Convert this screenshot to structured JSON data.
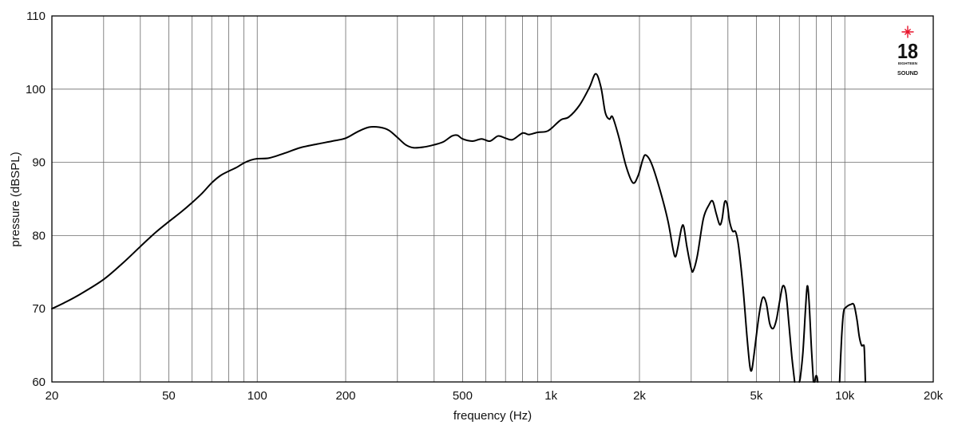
{
  "chart_data": {
    "type": "line",
    "xlabel": "frequency (Hz)",
    "ylabel": "pressure (dBSPL)",
    "xscale": "log",
    "xlim": [
      20,
      20000
    ],
    "ylim": [
      60,
      110
    ],
    "xticks": [
      {
        "v": 20,
        "label": "20"
      },
      {
        "v": 50,
        "label": "50"
      },
      {
        "v": 100,
        "label": "100"
      },
      {
        "v": 200,
        "label": "200"
      },
      {
        "v": 500,
        "label": "500"
      },
      {
        "v": 1000,
        "label": "1k"
      },
      {
        "v": 2000,
        "label": "2k"
      },
      {
        "v": 5000,
        "label": "5k"
      },
      {
        "v": 10000,
        "label": "10k"
      },
      {
        "v": 20000,
        "label": "20k"
      }
    ],
    "yticks": [
      60,
      70,
      80,
      90,
      100,
      110
    ],
    "grid": true,
    "line_color": "#000000",
    "series": [
      {
        "segments": [
          [
            [
              20,
              70
            ],
            [
              22,
              70.8
            ],
            [
              25,
              72
            ],
            [
              30,
              74
            ],
            [
              35,
              76.3
            ],
            [
              40,
              78.5
            ],
            [
              45,
              80.4
            ],
            [
              50,
              81.9
            ],
            [
              55,
              83.2
            ],
            [
              60,
              84.5
            ],
            [
              65,
              85.8
            ],
            [
              70,
              87.2
            ],
            [
              75,
              88.2
            ],
            [
              80,
              88.8
            ],
            [
              85,
              89.3
            ],
            [
              90,
              89.9
            ],
            [
              95,
              90.3
            ],
            [
              100,
              90.5
            ],
            [
              110,
              90.6
            ],
            [
              125,
              91.3
            ],
            [
              140,
              92
            ],
            [
              160,
              92.5
            ],
            [
              180,
              92.9
            ],
            [
              200,
              93.3
            ],
            [
              220,
              94.2
            ],
            [
              240,
              94.8
            ],
            [
              260,
              94.8
            ],
            [
              280,
              94.4
            ],
            [
              300,
              93.4
            ],
            [
              320,
              92.4
            ],
            [
              340,
              92
            ],
            [
              370,
              92.1
            ],
            [
              400,
              92.4
            ],
            [
              430,
              92.8
            ],
            [
              460,
              93.6
            ],
            [
              480,
              93.7
            ],
            [
              500,
              93.2
            ],
            [
              540,
              92.9
            ],
            [
              580,
              93.2
            ],
            [
              620,
              92.9
            ],
            [
              660,
              93.6
            ],
            [
              700,
              93.3
            ],
            [
              740,
              93.1
            ],
            [
              800,
              94
            ],
            [
              840,
              93.8
            ],
            [
              900,
              94.1
            ],
            [
              960,
              94.2
            ],
            [
              1000,
              94.6
            ],
            [
              1080,
              95.8
            ],
            [
              1150,
              96.2
            ],
            [
              1250,
              97.8
            ],
            [
              1350,
              100.2
            ],
            [
              1420,
              102.1
            ],
            [
              1480,
              100.2
            ],
            [
              1530,
              96.8
            ],
            [
              1580,
              95.9
            ],
            [
              1620,
              96.2
            ],
            [
              1700,
              93.5
            ],
            [
              1800,
              89.5
            ],
            [
              1900,
              87.2
            ],
            [
              1980,
              88.2
            ],
            [
              2050,
              90.3
            ],
            [
              2100,
              91
            ],
            [
              2200,
              89.8
            ],
            [
              2350,
              86.2
            ],
            [
              2500,
              82
            ],
            [
              2600,
              78.2
            ],
            [
              2650,
              77.1
            ],
            [
              2700,
              78.3
            ],
            [
              2780,
              81
            ],
            [
              2830,
              81.2
            ],
            [
              2900,
              78.5
            ],
            [
              3000,
              75.5
            ],
            [
              3050,
              75.2
            ],
            [
              3150,
              77.3
            ],
            [
              3300,
              82.3
            ],
            [
              3450,
              84.2
            ],
            [
              3550,
              84.7
            ],
            [
              3650,
              83
            ],
            [
              3750,
              81.5
            ],
            [
              3820,
              82.2
            ],
            [
              3900,
              84.6
            ],
            [
              3980,
              84.2
            ],
            [
              4050,
              82
            ],
            [
              4150,
              80.6
            ],
            [
              4250,
              80.5
            ],
            [
              4350,
              78.5
            ],
            [
              4500,
              73
            ],
            [
              4650,
              66
            ],
            [
              4750,
              62.2
            ],
            [
              4820,
              61.6
            ],
            [
              4900,
              63.5
            ],
            [
              5100,
              69
            ],
            [
              5250,
              71.5
            ],
            [
              5400,
              70.8
            ],
            [
              5550,
              68
            ],
            [
              5700,
              67.3
            ],
            [
              5850,
              68.5
            ],
            [
              6000,
              71
            ],
            [
              6150,
              73.1
            ],
            [
              6300,
              72.2
            ],
            [
              6450,
              68
            ],
            [
              6600,
              63.5
            ],
            [
              6750,
              60
            ]
          ],
          [
            [
              7000,
              60
            ],
            [
              7050,
              60.5
            ],
            [
              7200,
              64
            ],
            [
              7350,
              70
            ],
            [
              7450,
              73.1
            ],
            [
              7550,
              71.2
            ],
            [
              7700,
              64.5
            ],
            [
              7820,
              60
            ]
          ],
          [
            [
              7900,
              60
            ],
            [
              7970,
              60.8
            ],
            [
              8040,
              60.7
            ],
            [
              8090,
              60
            ]
          ],
          [
            [
              9600,
              60
            ],
            [
              9750,
              66
            ],
            [
              9900,
              69.5
            ],
            [
              10100,
              70.2
            ],
            [
              10500,
              70.6
            ],
            [
              10750,
              70.5
            ],
            [
              11000,
              68.5
            ],
            [
              11200,
              66.2
            ],
            [
              11400,
              65
            ],
            [
              11550,
              65
            ],
            [
              11650,
              64.5
            ],
            [
              11750,
              60
            ]
          ]
        ]
      }
    ]
  },
  "logo": {
    "number": "18",
    "line1": "EIGHTEEN",
    "line2": "SOUND",
    "star_color": "#e8132b"
  }
}
